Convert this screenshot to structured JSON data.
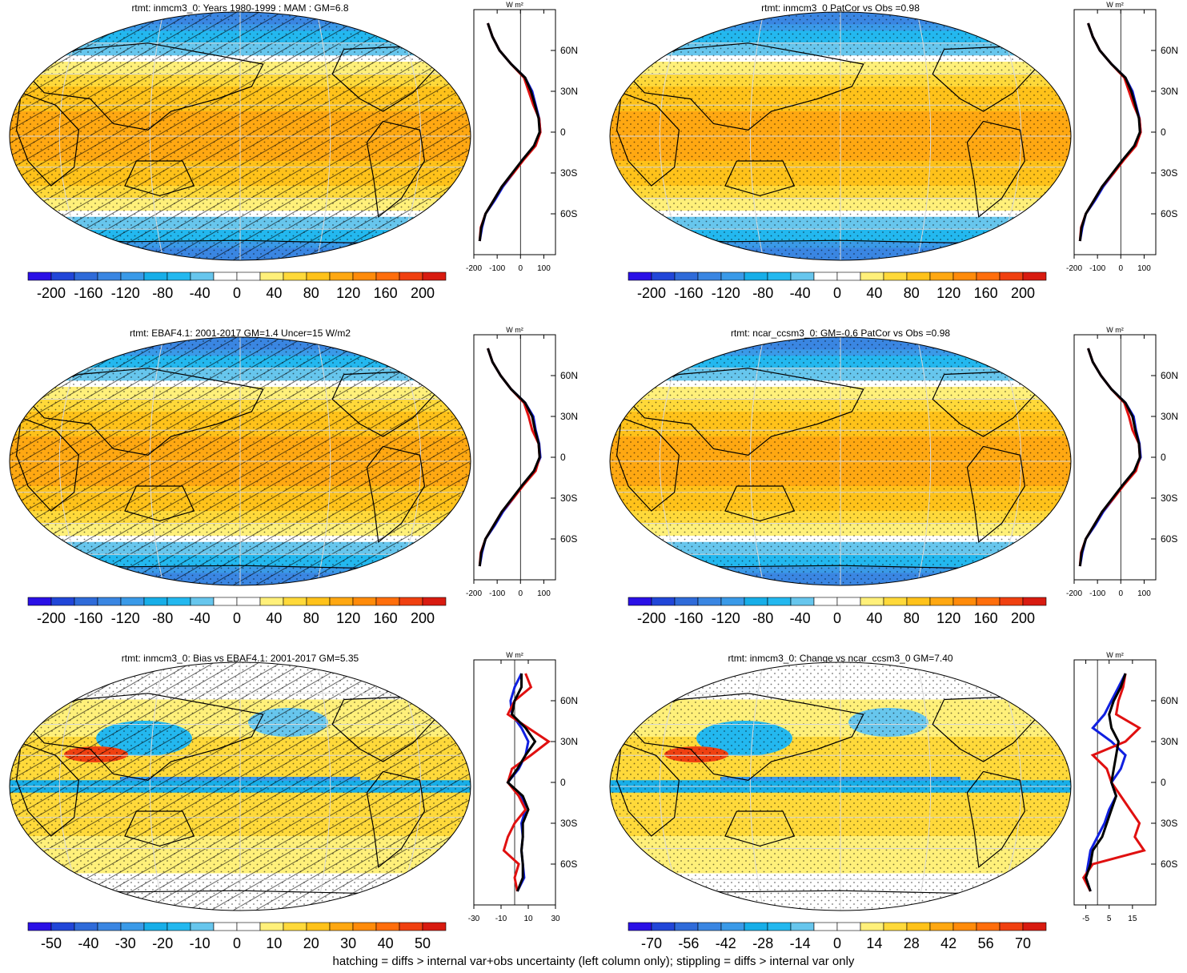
{
  "footnote": "hatching = diffs > internal var+obs uncertainty (left column only); stippling = diffs > internal var only",
  "colors": {
    "model_line": "#1020e0",
    "obs_line": "#e01010",
    "third_line": "#000000",
    "palette_full": [
      "#2a10e6",
      "#2146d8",
      "#2f6bd9",
      "#3a86e2",
      "#3a9ae8",
      "#17aee8",
      "#23b8ef",
      "#67c6ed",
      "#ffffff",
      "#ffffff",
      "#fff07a",
      "#ffd93a",
      "#ffc21a",
      "#ffa812",
      "#ff8b0a",
      "#ff6e0c",
      "#f04010",
      "#d81b10"
    ]
  },
  "panels": [
    {
      "id": "inmcm3-mam",
      "title": "rtmt: inmcm3_0: Years 1980-1999 : MAM : GM=6.8",
      "kind": "mean",
      "hatch": true,
      "colorbar_labels": [
        "-200",
        "-160",
        "-120",
        "-80",
        "-40",
        "0",
        "40",
        "80",
        "120",
        "160",
        "200"
      ]
    },
    {
      "id": "inmcm3-patcor",
      "title": "rtmt: inmcm3_0 PatCor vs Obs =0.98",
      "kind": "mean",
      "hatch": false,
      "colorbar_labels": [
        "-200",
        "-160",
        "-120",
        "-80",
        "-40",
        "0",
        "40",
        "80",
        "120",
        "160",
        "200"
      ]
    },
    {
      "id": "ebaf",
      "title": "rtmt: EBAF4.1: 2001-2017 GM=1.4 Uncer=15 W/m2",
      "kind": "mean",
      "hatch": true,
      "colorbar_labels": [
        "-200",
        "-160",
        "-120",
        "-80",
        "-40",
        "0",
        "40",
        "80",
        "120",
        "160",
        "200"
      ]
    },
    {
      "id": "ncar-ccsm3",
      "title": "rtmt: ncar_ccsm3_0: GM=-0.6 PatCor vs Obs =0.98",
      "kind": "mean",
      "hatch": false,
      "colorbar_labels": [
        "-200",
        "-160",
        "-120",
        "-80",
        "-40",
        "0",
        "40",
        "80",
        "120",
        "160",
        "200"
      ]
    },
    {
      "id": "bias",
      "title": "rtmt: inmcm3_0: Bias vs EBAF4.1: 2001-2017 GM=5.35",
      "kind": "diff",
      "hatch": true,
      "colorbar_labels": [
        "-50",
        "-40",
        "-30",
        "-20",
        "-10",
        "0",
        "10",
        "20",
        "30",
        "40",
        "50"
      ]
    },
    {
      "id": "change",
      "title": "rtmt: inmcm3_0: Change vs ncar_ccsm3_0 GM=7.40",
      "kind": "change",
      "hatch": false,
      "colorbar_labels": [
        "-70",
        "-56",
        "-42",
        "-28",
        "-14",
        "0",
        "14",
        "28",
        "42",
        "56",
        "70"
      ]
    }
  ],
  "chart_data": [
    {
      "type": "line",
      "panel": "inmcm3-mam",
      "units": "W m²",
      "xticks": [
        "-200",
        "-100",
        "0",
        "100"
      ],
      "yticks": [
        "60N",
        "30N",
        "0",
        "30S",
        "60S"
      ],
      "xlim": [
        -200,
        150
      ],
      "lat": [
        80,
        70,
        60,
        50,
        40,
        30,
        20,
        10,
        0,
        -10,
        -20,
        -30,
        -40,
        -50,
        -60,
        -70,
        -80
      ],
      "series": [
        {
          "values": [
            -140,
            -120,
            -90,
            -40,
            20,
            50,
            65,
            80,
            85,
            60,
            10,
            -30,
            -75,
            -110,
            -150,
            -165,
            -175
          ]
        },
        {
          "values": [
            -140,
            -120,
            -90,
            -40,
            15,
            35,
            55,
            80,
            85,
            65,
            15,
            -30,
            -80,
            -115,
            -150,
            -170,
            -175
          ]
        },
        {
          "values": [
            -140,
            -120,
            -90,
            -40,
            20,
            45,
            62,
            78,
            82,
            58,
            10,
            -35,
            -80,
            -115,
            -150,
            -168,
            -175
          ]
        }
      ]
    },
    {
      "type": "line",
      "panel": "inmcm3-patcor",
      "units": "W m²",
      "xticks": [
        "-200",
        "-100",
        "0",
        "100"
      ],
      "yticks": [
        "60N",
        "30N",
        "0",
        "30S",
        "60S"
      ],
      "xlim": [
        -200,
        150
      ],
      "lat": [
        80,
        70,
        60,
        50,
        40,
        30,
        20,
        10,
        0,
        -10,
        -20,
        -30,
        -40,
        -50,
        -60,
        -70,
        -80
      ],
      "series": [
        {
          "values": [
            -140,
            -120,
            -90,
            -40,
            20,
            50,
            65,
            80,
            85,
            60,
            10,
            -30,
            -75,
            -110,
            -150,
            -165,
            -175
          ]
        },
        {
          "values": [
            -140,
            -120,
            -90,
            -40,
            15,
            35,
            55,
            80,
            85,
            65,
            15,
            -30,
            -80,
            -115,
            -150,
            -170,
            -175
          ]
        },
        {
          "values": [
            -140,
            -120,
            -90,
            -40,
            20,
            45,
            62,
            78,
            82,
            58,
            10,
            -35,
            -80,
            -115,
            -150,
            -168,
            -175
          ]
        }
      ]
    },
    {
      "type": "line",
      "panel": "ebaf",
      "units": "W m²",
      "xticks": [
        "-200",
        "-100",
        "0",
        "100"
      ],
      "yticks": [
        "60N",
        "30N",
        "0",
        "30S",
        "60S"
      ],
      "xlim": [
        -200,
        150
      ],
      "lat": [
        80,
        70,
        60,
        50,
        40,
        30,
        20,
        10,
        0,
        -10,
        -20,
        -30,
        -40,
        -50,
        -60,
        -70,
        -80
      ],
      "series": [
        {
          "values": [
            -140,
            -120,
            -85,
            -40,
            20,
            55,
            65,
            80,
            85,
            60,
            10,
            -30,
            -75,
            -110,
            -150,
            -165,
            -175
          ]
        },
        {
          "values": [
            -140,
            -120,
            -85,
            -40,
            15,
            35,
            50,
            78,
            82,
            65,
            15,
            -30,
            -80,
            -115,
            -150,
            -170,
            -175
          ]
        },
        {
          "values": [
            -140,
            -120,
            -85,
            -40,
            20,
            50,
            62,
            78,
            82,
            58,
            10,
            -35,
            -80,
            -115,
            -150,
            -168,
            -175
          ]
        }
      ]
    },
    {
      "type": "line",
      "panel": "ncar-ccsm3",
      "units": "W m²",
      "xticks": [
        "-200",
        "-100",
        "0",
        "100"
      ],
      "yticks": [
        "60N",
        "30N",
        "0",
        "30S",
        "60S"
      ],
      "xlim": [
        -200,
        150
      ],
      "lat": [
        80,
        70,
        60,
        50,
        40,
        30,
        20,
        10,
        0,
        -10,
        -20,
        -30,
        -40,
        -50,
        -60,
        -70,
        -80
      ],
      "series": [
        {
          "values": [
            -140,
            -120,
            -85,
            -40,
            20,
            55,
            65,
            80,
            85,
            60,
            10,
            -30,
            -75,
            -110,
            -150,
            -165,
            -175
          ]
        },
        {
          "values": [
            -140,
            -120,
            -85,
            -40,
            15,
            35,
            50,
            78,
            82,
            65,
            15,
            -30,
            -80,
            -115,
            -150,
            -170,
            -175
          ]
        },
        {
          "values": [
            -140,
            -120,
            -85,
            -40,
            20,
            50,
            62,
            78,
            82,
            58,
            10,
            -35,
            -80,
            -115,
            -150,
            -168,
            -175
          ]
        }
      ]
    },
    {
      "type": "line",
      "panel": "bias",
      "units": "W m²",
      "xticks": [
        "-30",
        "-10",
        "10",
        "30"
      ],
      "yticks": [
        "60N",
        "30N",
        "0",
        "30S",
        "60S"
      ],
      "xlim": [
        -30,
        30
      ],
      "lat": [
        80,
        70,
        60,
        50,
        40,
        30,
        20,
        10,
        0,
        -10,
        -20,
        -30,
        -40,
        -50,
        -60,
        -70,
        -80
      ],
      "series": [
        {
          "values": [
            5,
            0,
            -3,
            -2,
            5,
            10,
            8,
            3,
            -5,
            5,
            8,
            5,
            6,
            5,
            6,
            7,
            2
          ]
        },
        {
          "values": [
            8,
            12,
            0,
            -5,
            10,
            25,
            12,
            -2,
            -5,
            3,
            8,
            0,
            -5,
            -8,
            3,
            0,
            2
          ]
        },
        {
          "values": [
            5,
            5,
            0,
            -2,
            8,
            15,
            8,
            2,
            -5,
            6,
            10,
            6,
            6,
            5,
            6,
            6,
            2
          ]
        }
      ]
    },
    {
      "type": "line",
      "panel": "change",
      "units": "W m²",
      "xticks": [
        "-5",
        "5",
        "15"
      ],
      "yticks": [
        "60N",
        "30N",
        "0",
        "30S",
        "60S"
      ],
      "xlim": [
        -10,
        25
      ],
      "lat": [
        80,
        70,
        60,
        50,
        40,
        30,
        20,
        10,
        0,
        -10,
        -20,
        -30,
        -40,
        -50,
        -60,
        -70,
        -80
      ],
      "series": [
        {
          "values": [
            12,
            9,
            6,
            3,
            -2,
            6,
            12,
            10,
            6,
            8,
            5,
            3,
            0,
            -3,
            -4,
            -5,
            -3
          ]
        },
        {
          "values": [
            12,
            11,
            9,
            8,
            18,
            12,
            -2,
            4,
            6,
            10,
            14,
            18,
            16,
            20,
            -2,
            -6,
            -3
          ]
        },
        {
          "values": [
            12,
            10,
            7,
            5,
            6,
            9,
            8,
            7,
            6,
            8,
            6,
            4,
            2,
            -2,
            -3,
            -5,
            -3
          ]
        }
      ]
    }
  ]
}
